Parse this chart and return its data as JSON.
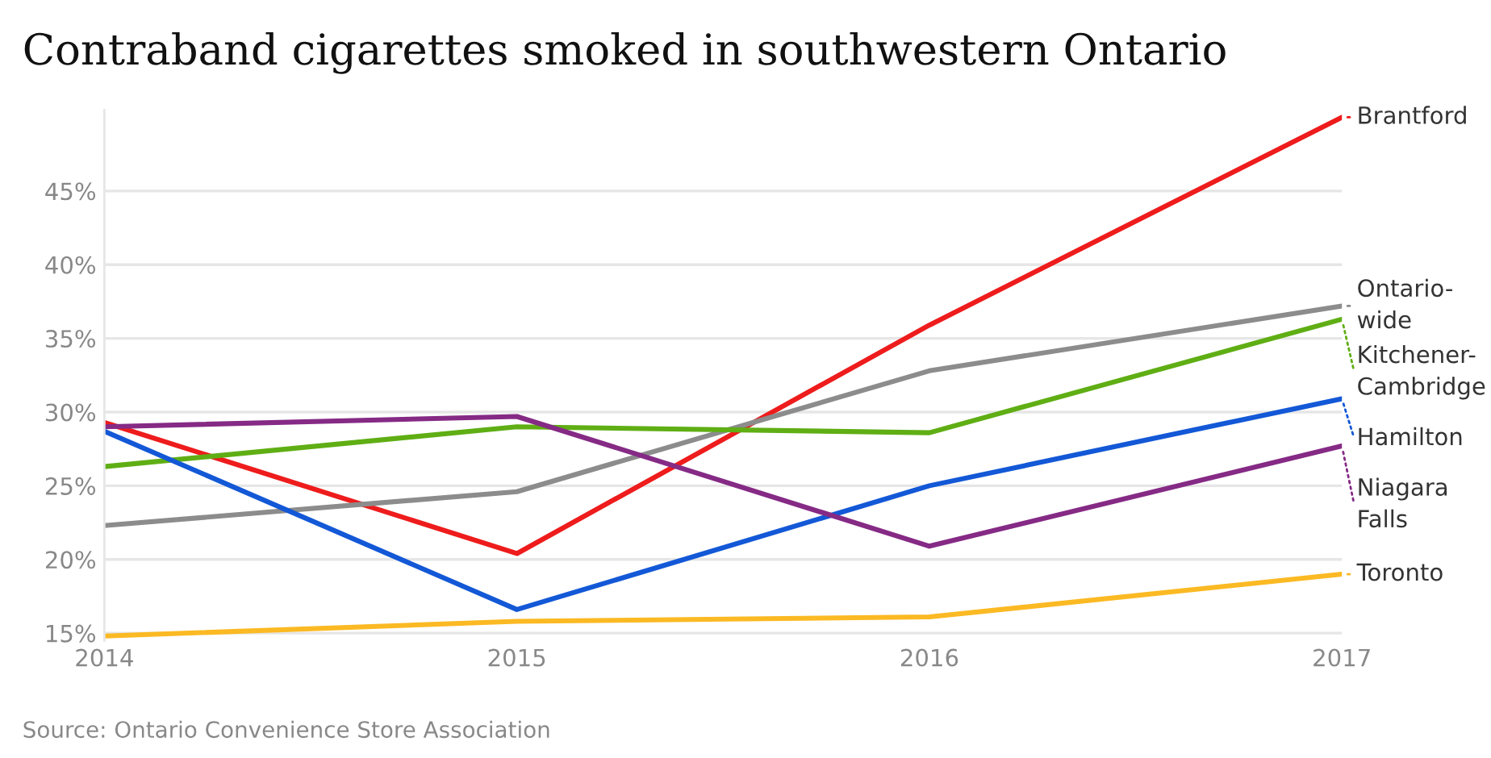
{
  "chart_data": {
    "type": "line",
    "title": "Contraband cigarettes smoked in southwestern Ontario",
    "x": [
      2014,
      2015,
      2016,
      2017
    ],
    "series": [
      {
        "name": "Brantford",
        "color": "#ee1c1c",
        "values": [
          29.3,
          20.4,
          35.9,
          50.0
        ]
      },
      {
        "name": "Ontario-wide",
        "color": "#8c8c8c",
        "values": [
          22.3,
          24.6,
          32.8,
          37.2
        ]
      },
      {
        "name": "Kitchener-Cambridge",
        "color": "#5fae14",
        "values": [
          26.3,
          29.0,
          28.6,
          36.3
        ]
      },
      {
        "name": "Hamilton",
        "color": "#1358d6",
        "values": [
          28.7,
          16.6,
          25.0,
          30.9
        ]
      },
      {
        "name": "Niagara Falls",
        "color": "#852a85",
        "values": [
          29.0,
          29.7,
          20.9,
          27.7
        ]
      },
      {
        "name": "Toronto",
        "color": "#fbb923",
        "values": [
          14.8,
          15.8,
          16.1,
          19.0
        ]
      }
    ],
    "xlim": [
      2014,
      2017
    ],
    "xticks": [
      2014,
      2015,
      2016,
      2017
    ],
    "ylim": [
      14.5,
      50.5
    ],
    "yticks": [
      {
        "value": 15,
        "label": "15%"
      },
      {
        "value": 20,
        "label": "20%"
      },
      {
        "value": 25,
        "label": "25%"
      },
      {
        "value": 30,
        "label": "30%"
      },
      {
        "value": 35,
        "label": "35%"
      },
      {
        "value": 40,
        "label": "40%"
      },
      {
        "value": 45,
        "label": "45%"
      }
    ],
    "grid": "y",
    "legend": "right",
    "line_style": "solid",
    "marker": "none",
    "annotations": [
      "Source: Ontario Convenience Store Association"
    ]
  }
}
